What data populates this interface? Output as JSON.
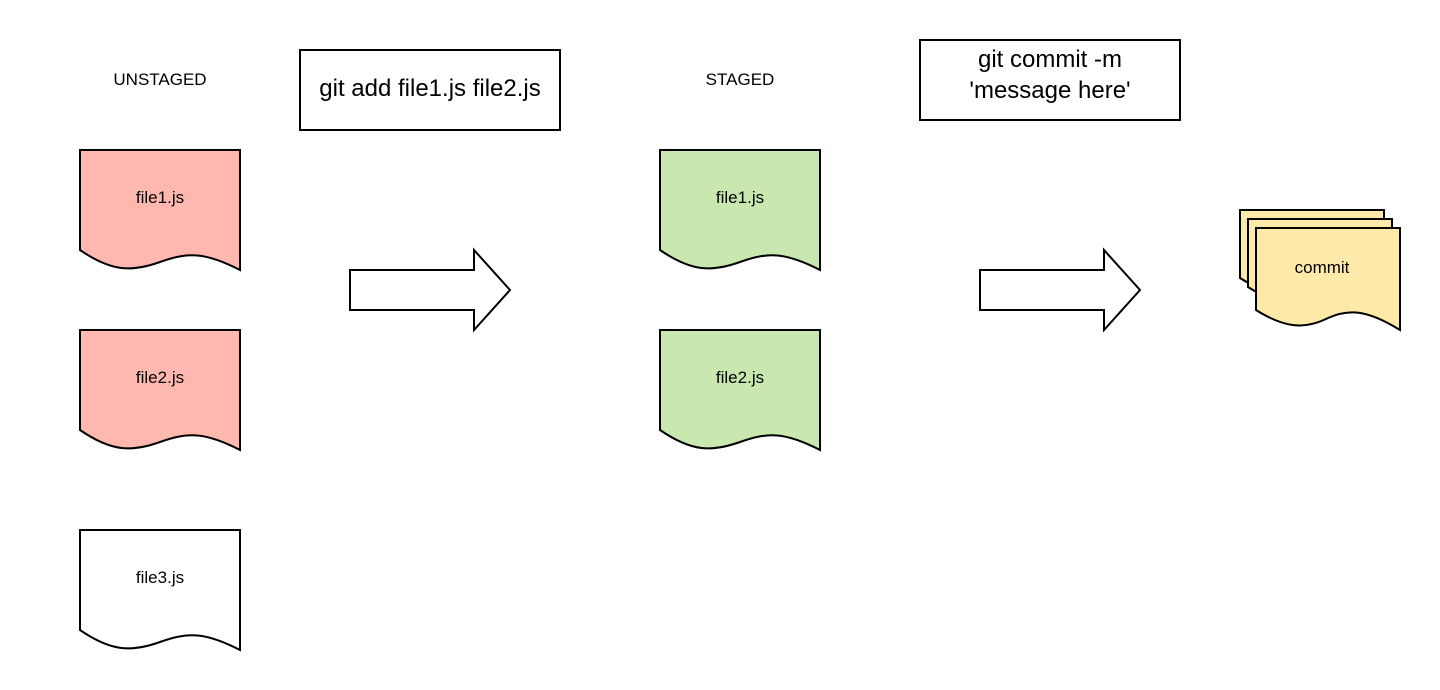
{
  "sections": {
    "unstaged_label": "UNSTAGED",
    "staged_label": "STAGED"
  },
  "commands": {
    "add": "git add file1.js file2.js",
    "commit_line1": "git commit -m",
    "commit_line2": "'message here'"
  },
  "unstaged_files": [
    {
      "name": "file1.js",
      "fill": "#ffb8b0"
    },
    {
      "name": "file2.js",
      "fill": "#ffb8b0"
    },
    {
      "name": "file3.js",
      "fill": "#ffffff"
    }
  ],
  "staged_files": [
    {
      "name": "file1.js",
      "fill": "#c8e8b0"
    },
    {
      "name": "file2.js",
      "fill": "#c8e8b0"
    }
  ],
  "commit": {
    "label": "commit",
    "fill": "#fdeaa8"
  },
  "colors": {
    "stroke": "#000000",
    "arrow_fill": "#ffffff"
  }
}
